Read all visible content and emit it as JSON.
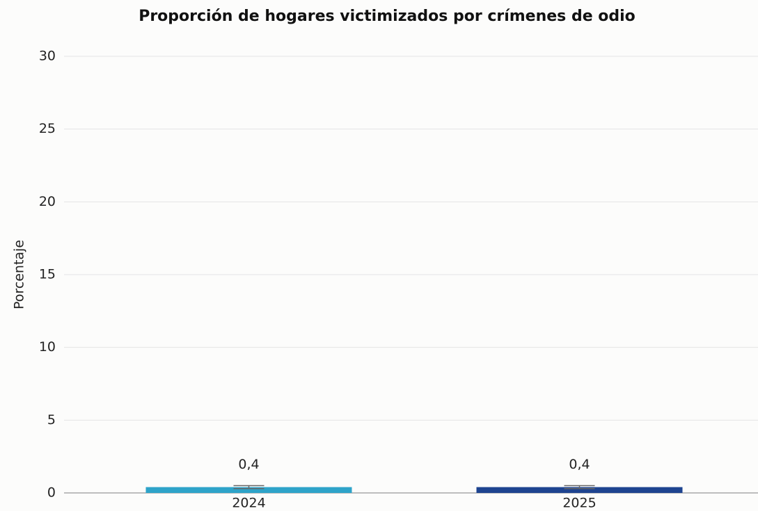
{
  "chart_data": {
    "type": "bar",
    "title": "Proporción de hogares victimizados por crímenes de odio",
    "ylabel": "Porcentaje",
    "categories": [
      "2024",
      "2025"
    ],
    "values": [
      0.4,
      0.4
    ],
    "value_labels": [
      "0,4",
      "0,4"
    ],
    "errors": [
      0.1,
      0.1
    ],
    "colors": [
      "#2ea3c9",
      "#1e4490"
    ],
    "ylim": [
      0,
      30
    ],
    "yticks": [
      0,
      5,
      10,
      15,
      20,
      25,
      30
    ],
    "grid": true
  }
}
